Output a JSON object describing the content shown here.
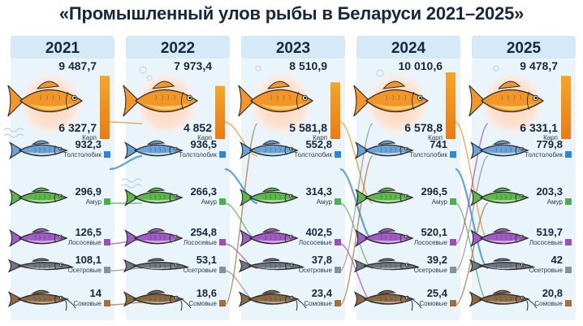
{
  "title": "«Промышленный улов рыбы в Беларуси 2021–2025»",
  "colors": {
    "header_bg": "#d6e9f6",
    "column_bg": "#eaf4fb",
    "title": "#16273f"
  },
  "chart_data": {
    "type": "table",
    "title": "«Промышленный улов рыбы в Беларуси 2021–2025»",
    "years": [
      "2021",
      "2022",
      "2023",
      "2024",
      "2025"
    ],
    "carp_total": {
      "values": [
        9487.7,
        7973.4,
        8510.9,
        10010.6,
        9478.7
      ],
      "labels": [
        "9 487,7",
        "7 973,4",
        "8 510,9",
        "10 010,6",
        "9 478,7"
      ]
    },
    "categories": [
      {
        "name": "Карп",
        "color": "#f08a1c",
        "fish_icon": "carp-icon",
        "values": [
          6327.7,
          4852,
          5581.8,
          6578.8,
          6331.1
        ],
        "labels": [
          "6 327,7",
          "4 852",
          "5 581,8",
          "6 578,8",
          "6 331,1"
        ]
      },
      {
        "name": "Толстолобик",
        "color": "#2f86d6",
        "fish_icon": "silver-carp-icon",
        "values": [
          932.3,
          936.5,
          552.8,
          741,
          779.8
        ],
        "labels": [
          "932,3",
          "936,5",
          "552,8",
          "741",
          "779,8"
        ]
      },
      {
        "name": "Амур",
        "color": "#4cae4c",
        "fish_icon": "grass-carp-icon",
        "values": [
          296.9,
          266.3,
          314.3,
          296.5,
          203.3
        ],
        "labels": [
          "296,9",
          "266,3",
          "314,3",
          "296,5",
          "203,3"
        ]
      },
      {
        "name": "Лососевые",
        "color": "#9b4fb8",
        "fish_icon": "salmon-icon",
        "values": [
          126.5,
          254.8,
          402.5,
          520.1,
          519.7
        ],
        "labels": [
          "126,5",
          "254,8",
          "402,5",
          "520,1",
          "519,7"
        ]
      },
      {
        "name": "Осетровые",
        "color": "#8a8f98",
        "fish_icon": "sturgeon-icon",
        "values": [
          108.1,
          53.1,
          37.8,
          39.2,
          42
        ],
        "labels": [
          "108,1",
          "53,1",
          "37,8",
          "39,2",
          "42"
        ]
      },
      {
        "name": "Сомовые",
        "color": "#a0703a",
        "fish_icon": "catfish-icon",
        "values": [
          14,
          18.6,
          23.4,
          25.4,
          20.8
        ],
        "labels": [
          "14",
          "18,6",
          "23,4",
          "25,4",
          "20,8"
        ]
      }
    ]
  }
}
